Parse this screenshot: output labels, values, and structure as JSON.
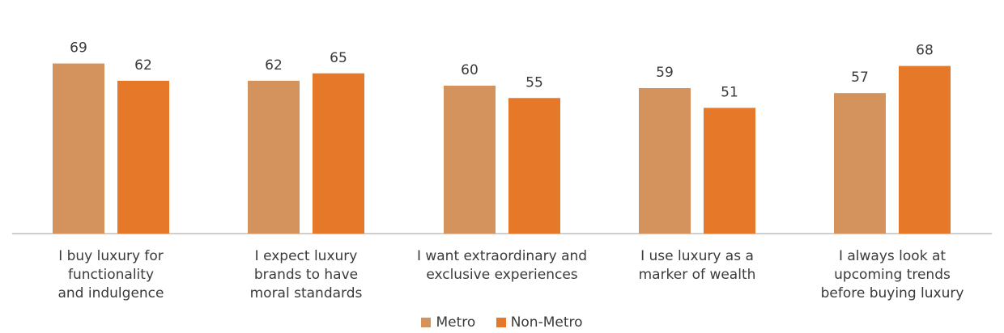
{
  "chart_data": {
    "type": "bar",
    "categories": [
      "I buy luxury for functionality and indulgence",
      "I expect luxury brands to have moral standards",
      "I want extraordinary and exclusive experiences",
      "I use luxury as a marker of wealth",
      "I always look at upcoming trends before buying luxury"
    ],
    "category_lines": [
      [
        "I buy luxury for",
        "functionality",
        "and indulgence"
      ],
      [
        "I expect luxury",
        "brands to have",
        "moral standards"
      ],
      [
        "I want extraordinary and",
        "exclusive experiences"
      ],
      [
        "I use luxury as a",
        "marker of wealth"
      ],
      [
        "I always look at",
        "upcoming trends",
        "before buying luxury"
      ]
    ],
    "series": [
      {
        "name": "Metro",
        "values": [
          69,
          62,
          60,
          59,
          57
        ],
        "color": "#D4925C"
      },
      {
        "name": "Non-Metro",
        "values": [
          62,
          65,
          55,
          51,
          68
        ],
        "color": "#E6782A"
      }
    ],
    "title": "",
    "xlabel": "",
    "ylabel": "",
    "ylim": [
      0,
      100
    ],
    "grid": false,
    "legend": "bottom-center",
    "data_labels": true
  }
}
